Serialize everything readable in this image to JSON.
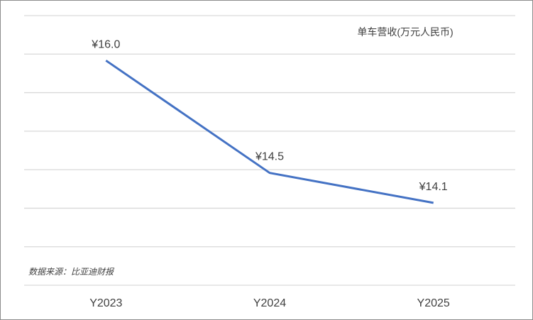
{
  "chart_data": {
    "type": "line",
    "title": "单车营收(万元人民币)",
    "source": "数据来源：比亚迪财报",
    "categories": [
      "Y2023",
      "Y2024",
      "Y2025"
    ],
    "series": [
      {
        "values": [
          16.0,
          14.5,
          14.1
        ],
        "labels": [
          "¥16.0",
          "¥14.5",
          "¥14.1"
        ]
      }
    ],
    "ylim": [
      13.0,
      16.6
    ],
    "grid": true,
    "colors": {
      "line": "#4472c4",
      "grid": "#d9d9d9",
      "text": "#404040",
      "border": "#8c8c8c"
    }
  }
}
